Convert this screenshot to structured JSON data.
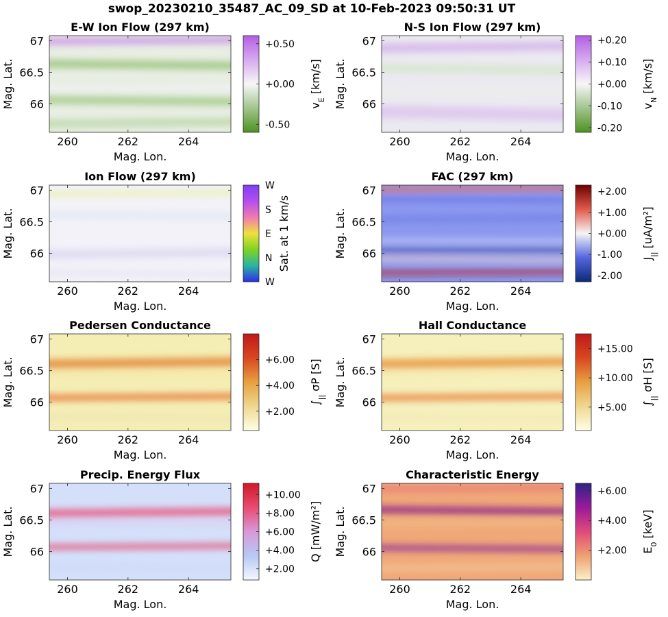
{
  "figure_title": "swop_20230210_35487_AC_09_SD at 10-Feb-2023 09:50:31 UT",
  "chart_data": [
    {
      "type": "heatmap",
      "title": "E-W Ion Flow (297 km)",
      "xlabel": "Mag. Lon.",
      "ylabel": "Mag. Lat.",
      "xlim": [
        259.4,
        265.4
      ],
      "ylim": [
        65.55,
        67.08
      ],
      "xticks": [
        260,
        262,
        264
      ],
      "xticklabels": [
        "260",
        "262",
        "264"
      ],
      "yticks": [
        66,
        66.5,
        67
      ],
      "yticklabels": [
        "66",
        "66.5",
        "67"
      ],
      "colorbar": {
        "label": "v_E [km/s]",
        "label_main": "v",
        "label_sub": "E",
        "label_tail": " [km/s]",
        "range": [
          -0.6,
          0.6
        ],
        "ticks": [
          -0.5,
          0,
          0.5
        ],
        "ticklabels": [
          "-0.50",
          "+0.00",
          "+0.50"
        ],
        "colormap": [
          "#4d9221",
          "#f7f7f7",
          "#b45ee6"
        ]
      },
      "background": "#e8eee3",
      "bands": [
        {
          "lat": 67.0,
          "width": 0.1,
          "color": "#c88ae8",
          "opacity": 0.85
        },
        {
          "lat": 66.62,
          "width": 0.12,
          "color": "#8fbf70",
          "opacity": 0.8
        },
        {
          "lat": 66.25,
          "width": 0.08,
          "color": "#f3f0f5",
          "opacity": 0.8
        },
        {
          "lat": 66.05,
          "width": 0.12,
          "color": "#a0c884",
          "opacity": 0.85
        },
        {
          "lat": 65.7,
          "width": 0.12,
          "color": "#b9d5a4",
          "opacity": 0.8
        }
      ]
    },
    {
      "type": "heatmap",
      "title": "N-S Ion Flow (297 km)",
      "xlabel": "Mag. Lon.",
      "ylabel": "Mag. Lat.",
      "xlim": [
        259.4,
        265.4
      ],
      "ylim": [
        65.55,
        67.08
      ],
      "xticks": [
        260,
        262,
        264
      ],
      "xticklabels": [
        "260",
        "262",
        "264"
      ],
      "yticks": [
        66,
        66.5,
        67
      ],
      "yticklabels": [
        "66",
        "66.5",
        "67"
      ],
      "colorbar": {
        "label": "v_N [km/s]",
        "label_main": "v",
        "label_sub": "N",
        "label_tail": " [km/s]",
        "range": [
          -0.22,
          0.22
        ],
        "ticks": [
          -0.2,
          -0.1,
          0,
          0.1,
          0.2
        ],
        "ticklabels": [
          "-0.20",
          "-0.10",
          "+0.00",
          "+0.10",
          "+0.20"
        ],
        "colormap": [
          "#4d9221",
          "#f7f7f7",
          "#b45ee6"
        ]
      },
      "background": "#ebeaf0",
      "bands": [
        {
          "lat": 66.9,
          "width": 0.14,
          "color": "#d2b0ea",
          "opacity": 0.8
        },
        {
          "lat": 66.55,
          "width": 0.14,
          "color": "#d5e6cc",
          "opacity": 0.8
        },
        {
          "lat": 66.2,
          "width": 0.1,
          "color": "#eef0ea",
          "opacity": 0.6
        },
        {
          "lat": 65.85,
          "width": 0.2,
          "color": "#dcc3ee",
          "opacity": 0.8
        }
      ]
    },
    {
      "type": "heatmap",
      "title": "Ion Flow (297 km)",
      "xlabel": "Mag. Lon.",
      "ylabel": "Mag. Lat.",
      "xlim": [
        259.4,
        265.4
      ],
      "ylim": [
        65.55,
        67.08
      ],
      "xticks": [
        260,
        262,
        264
      ],
      "xticklabels": [
        "260",
        "262",
        "264"
      ],
      "yticks": [
        66,
        66.5,
        67
      ],
      "yticklabels": [
        "66",
        "66.5",
        "67"
      ],
      "colorbar": {
        "label": "Sat. at 1 km/s",
        "label_main": "Sat. at 1 km/s",
        "label_sub": "",
        "label_tail": "",
        "ticklabels": [
          "W",
          "N",
          "E",
          "S",
          "W"
        ],
        "colormap": [
          "#2e2ee6",
          "#2ab4a0",
          "#7fd420",
          "#f0e040",
          "#f07ab0",
          "#b44ef0",
          "#7f3ff5"
        ]
      },
      "background": "#f3f2f8",
      "bands": [
        {
          "lat": 66.95,
          "width": 0.08,
          "color": "#eaf0a8",
          "opacity": 0.8
        },
        {
          "lat": 66.6,
          "width": 0.1,
          "color": "#dfe6f2",
          "opacity": 0.8
        },
        {
          "lat": 66.0,
          "width": 0.14,
          "color": "#dcd8f2",
          "opacity": 0.85
        },
        {
          "lat": 65.68,
          "width": 0.1,
          "color": "#e6e4f4",
          "opacity": 0.7
        }
      ]
    },
    {
      "type": "heatmap",
      "title": "FAC (297 km)",
      "xlabel": "Mag. Lon.",
      "ylabel": "Mag. Lat.",
      "xlim": [
        259.4,
        265.4
      ],
      "ylim": [
        65.55,
        67.08
      ],
      "xticks": [
        260,
        262,
        264
      ],
      "xticklabels": [
        "260",
        "262",
        "264"
      ],
      "yticks": [
        66,
        66.5,
        67
      ],
      "yticklabels": [
        "66",
        "66.5",
        "67"
      ],
      "colorbar": {
        "label": "J_|| [uA/m^2]",
        "label_main": "J",
        "label_sub": "||",
        "label_tail": " [uA/m²]",
        "range": [
          -2.3,
          2.3
        ],
        "ticks": [
          -2,
          -1,
          0,
          1,
          2
        ],
        "ticklabels": [
          "-2.00",
          "-1.00",
          "+0.00",
          "+1.00",
          "+2.00"
        ],
        "colormap": [
          "#0a2a78",
          "#5566e0",
          "#f5f5f5",
          "#e05a4a",
          "#6e0000"
        ]
      },
      "background": "#8c98ee",
      "bands": [
        {
          "lat": 67.02,
          "width": 0.07,
          "color": "#e86a5a",
          "opacity": 0.9
        },
        {
          "lat": 66.85,
          "width": 0.06,
          "color": "#5d6ee6",
          "opacity": 0.9
        },
        {
          "lat": 66.55,
          "width": 0.1,
          "color": "#6f7ee8",
          "opacity": 0.8
        },
        {
          "lat": 66.2,
          "width": 0.05,
          "color": "#d4d8f6",
          "opacity": 0.9
        },
        {
          "lat": 66.05,
          "width": 0.04,
          "color": "#0c2d82",
          "opacity": 0.95
        },
        {
          "lat": 65.9,
          "width": 0.06,
          "color": "#f2d2c8",
          "opacity": 0.9
        },
        {
          "lat": 65.7,
          "width": 0.06,
          "color": "#b81818",
          "opacity": 0.95
        }
      ]
    },
    {
      "type": "heatmap",
      "title": "Pedersen Conductance",
      "xlabel": "Mag. Lon.",
      "ylabel": "Mag. Lat.",
      "xlim": [
        259.4,
        265.4
      ],
      "ylim": [
        65.55,
        67.08
      ],
      "xticks": [
        260,
        262,
        264
      ],
      "xticklabels": [
        "260",
        "262",
        "264"
      ],
      "yticks": [
        66,
        66.5,
        67
      ],
      "yticklabels": [
        "66",
        "66.5",
        "67"
      ],
      "colorbar": {
        "label": "∫|| σP [S]",
        "label_main": "∫",
        "label_sub": "||",
        "label_tail": " σP [S]",
        "range": [
          0.5,
          8.0
        ],
        "ticks": [
          2,
          4,
          6
        ],
        "ticklabels": [
          "+2.00",
          "+4.00",
          "+6.00"
        ],
        "colormap": [
          "#ffffe6",
          "#eed890",
          "#e8a040",
          "#d84820",
          "#c01818"
        ]
      },
      "background": "#f4eeb4",
      "bands": [
        {
          "lat": 66.62,
          "width": 0.14,
          "color": "#e38a3a",
          "opacity": 0.9
        },
        {
          "lat": 66.45,
          "width": 0.07,
          "color": "#f7e4a0",
          "opacity": 0.7
        },
        {
          "lat": 66.08,
          "width": 0.09,
          "color": "#e87032",
          "opacity": 0.9
        },
        {
          "lat": 65.75,
          "width": 0.12,
          "color": "#f1e6b2",
          "opacity": 0.7
        }
      ]
    },
    {
      "type": "heatmap",
      "title": "Hall Conductance",
      "xlabel": "Mag. Lon.",
      "ylabel": "Mag. Lat.",
      "xlim": [
        259.4,
        265.4
      ],
      "ylim": [
        65.55,
        67.08
      ],
      "xticks": [
        260,
        262,
        264
      ],
      "xticklabels": [
        "260",
        "262",
        "264"
      ],
      "yticks": [
        66,
        66.5,
        67
      ],
      "yticklabels": [
        "66",
        "66.5",
        "67"
      ],
      "colorbar": {
        "label": "∫|| σH [S]",
        "label_main": "∫",
        "label_sub": "||",
        "label_tail": " σH [S]",
        "range": [
          1.0,
          17.5
        ],
        "ticks": [
          5,
          10,
          15
        ],
        "ticklabels": [
          "+5.00",
          "+10.00",
          "+15.00"
        ],
        "colormap": [
          "#ffffe6",
          "#eed890",
          "#e8a040",
          "#d84820",
          "#c01818"
        ]
      },
      "background": "#f5f0bc",
      "bands": [
        {
          "lat": 66.62,
          "width": 0.14,
          "color": "#e8963e",
          "opacity": 0.9
        },
        {
          "lat": 66.45,
          "width": 0.07,
          "color": "#f7e6a4",
          "opacity": 0.7
        },
        {
          "lat": 66.08,
          "width": 0.09,
          "color": "#e87a34",
          "opacity": 0.9
        },
        {
          "lat": 65.75,
          "width": 0.12,
          "color": "#f3eab8",
          "opacity": 0.7
        }
      ]
    },
    {
      "type": "heatmap",
      "title": "Precip. Energy Flux",
      "xlabel": "Mag. Lon.",
      "ylabel": "Mag. Lat.",
      "xlim": [
        259.4,
        265.4
      ],
      "ylim": [
        65.55,
        67.08
      ],
      "xticks": [
        260,
        262,
        264
      ],
      "xticklabels": [
        "260",
        "262",
        "264"
      ],
      "yticks": [
        66,
        66.5,
        67
      ],
      "yticklabels": [
        "66",
        "66.5",
        "67"
      ],
      "colorbar": {
        "label": "Q [mW/m^2]",
        "label_main": "Q",
        "label_sub": "",
        "label_tail": " [mW/m²]",
        "range": [
          0.8,
          11.2
        ],
        "ticks": [
          2,
          4,
          6,
          8,
          10
        ],
        "ticklabels": [
          "+2.00",
          "+4.00",
          "+6.00",
          "+8.00",
          "+10.00"
        ],
        "colormap": [
          "#f4f8ff",
          "#b8c8f4",
          "#d898d8",
          "#e84c70",
          "#d01828"
        ]
      },
      "background": "#d4e0fa",
      "bands": [
        {
          "lat": 66.62,
          "width": 0.12,
          "color": "#e85a82",
          "opacity": 0.9
        },
        {
          "lat": 66.45,
          "width": 0.06,
          "color": "#dcc6ec",
          "opacity": 0.7
        },
        {
          "lat": 66.08,
          "width": 0.08,
          "color": "#e35274",
          "opacity": 0.9
        },
        {
          "lat": 65.75,
          "width": 0.12,
          "color": "#cfdcf8",
          "opacity": 0.7
        }
      ]
    },
    {
      "type": "heatmap",
      "title": "Characteristic Energy",
      "xlabel": "Mag. Lon.",
      "ylabel": "Mag. Lat.",
      "xlim": [
        259.4,
        265.4
      ],
      "ylim": [
        65.55,
        67.08
      ],
      "xticks": [
        260,
        262,
        264
      ],
      "xticklabels": [
        "260",
        "262",
        "264"
      ],
      "yticks": [
        66,
        66.5,
        67
      ],
      "yticklabels": [
        "66",
        "66.5",
        "67"
      ],
      "colorbar": {
        "label": "E_0 [keV]",
        "label_main": "E",
        "label_sub": "0",
        "label_tail": " [keV]",
        "range": [
          0.0,
          6.5
        ],
        "ticks": [
          2,
          4,
          6
        ],
        "ticklabels": [
          "+2.00",
          "+4.00",
          "+6.00"
        ],
        "colormap": [
          "#fbf0c8",
          "#f0a070",
          "#e04a7a",
          "#9a1a9a",
          "#2c2486"
        ]
      },
      "background": "#f0a878",
      "bands": [
        {
          "lat": 67.0,
          "width": 0.06,
          "color": "#e3607a",
          "opacity": 0.8
        },
        {
          "lat": 66.65,
          "width": 0.1,
          "color": "#8a1e8e",
          "opacity": 0.9
        },
        {
          "lat": 66.45,
          "width": 0.06,
          "color": "#f4c890",
          "opacity": 0.7
        },
        {
          "lat": 66.05,
          "width": 0.08,
          "color": "#8e2a9a",
          "opacity": 0.9
        },
        {
          "lat": 65.75,
          "width": 0.12,
          "color": "#f2c496",
          "opacity": 0.7
        }
      ]
    }
  ]
}
